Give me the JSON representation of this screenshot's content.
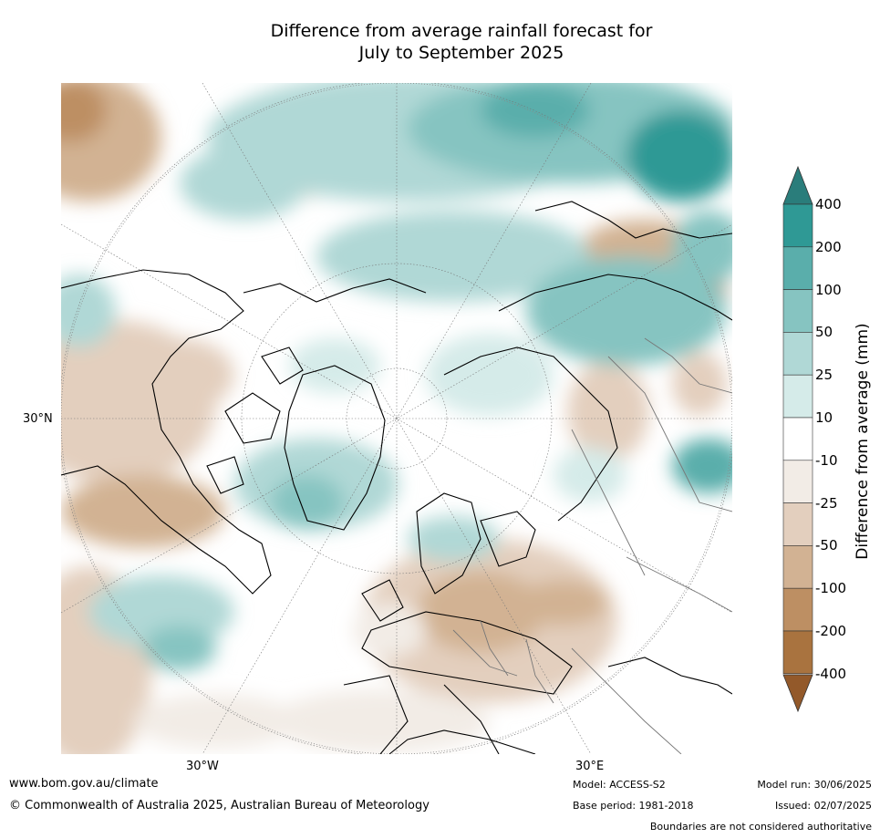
{
  "title": {
    "line1": "Difference from average rainfall forecast for",
    "line2": "July to September 2025"
  },
  "map": {
    "projection": "north-polar-stereographic",
    "lat_label": "30°N",
    "lon_labels": [
      "30°W",
      "30°E"
    ]
  },
  "colorbar": {
    "title": "Difference from average (mm)",
    "ticks": [
      "400",
      "200",
      "100",
      "50",
      "25",
      "10",
      "-10",
      "-25",
      "-50",
      "-100",
      "-200",
      "-400"
    ],
    "colors": [
      "#2a7d7b",
      "#2f9995",
      "#5aaeab",
      "#86c4c1",
      "#b0d8d6",
      "#d5ebe9",
      "#ffffff",
      "#f2ece6",
      "#e3cfbe",
      "#d2b293",
      "#bd8f63",
      "#a9733f",
      "#93592a"
    ]
  },
  "footer": {
    "url": "www.bom.gov.au/climate",
    "copyright": "© Commonwealth of Australia 2025, Australian Bureau of Meteorology",
    "model": "Model: ACCESS-S2",
    "base_period": "Base period: 1981-2018",
    "model_run": "Model run: 30/06/2025",
    "issued": "Issued: 02/07/2025",
    "disclaimer": "Boundaries are not considered authoritative"
  }
}
